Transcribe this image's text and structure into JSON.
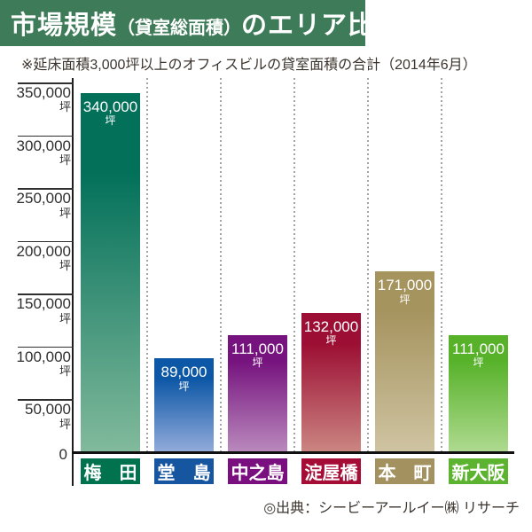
{
  "header": {
    "title_part1": "市場規模",
    "title_part2": "（貸室総面積）",
    "title_part3": "のエリア比較",
    "banner_color": "#3E7B58",
    "subtitle": "※延床面積3,000坪以上のオフィスビルの貸室面積の合計（2014年6月）"
  },
  "footer": {
    "source": "◎出典：シービーアールイー㈱ リサーチ"
  },
  "chart_data": {
    "type": "bar",
    "title": "市場規模（貸室総面積）のエリア比較",
    "subtitle": "※延床面積3,000坪以上のオフィスビルの貸室面積の合計（2014年6月）",
    "unit": "坪",
    "ylim": [
      0,
      350000
    ],
    "ytick_step": 50000,
    "yticks": [
      {
        "value": 350000,
        "label": "350,000"
      },
      {
        "value": 300000,
        "label": "300,000"
      },
      {
        "value": 250000,
        "label": "250,000"
      },
      {
        "value": 200000,
        "label": "200,000"
      },
      {
        "value": 150000,
        "label": "150,000"
      },
      {
        "value": 100000,
        "label": "100,000"
      },
      {
        "value": 50000,
        "label": "50,000"
      }
    ],
    "zero_label": "0",
    "grid": "vertical dotted separators between columns, horizontal tick stubs left of axis",
    "legend": "none",
    "categories": [
      "梅　田",
      "堂　島",
      "中之島",
      "淀屋橋",
      "本　町",
      "新大阪"
    ],
    "series": [
      {
        "category": "梅　田",
        "value": 340000,
        "value_label": "340,000",
        "bar_top_color": "#03705A",
        "bar_bottom_color": "#82BA9C",
        "box_color": "#00724E"
      },
      {
        "category": "堂　島",
        "value": 89000,
        "value_label": "89,000",
        "bar_top_color": "#0D58A6",
        "bar_bottom_color": "#93ABDB",
        "box_color": "#16559F"
      },
      {
        "category": "中之島",
        "value": 111000,
        "value_label": "111,000",
        "bar_top_color": "#76137E",
        "bar_bottom_color": "#BA8ABD",
        "box_color": "#7A0F80"
      },
      {
        "category": "淀屋橋",
        "value": 132000,
        "value_label": "132,000",
        "bar_top_color": "#9C0E33",
        "bar_bottom_color": "#CB8682",
        "box_color": "#A50D36"
      },
      {
        "category": "本　町",
        "value": 171000,
        "value_label": "171,000",
        "bar_top_color": "#A6945F",
        "bar_bottom_color": "#CFC4A2",
        "box_color": "#A39160"
      },
      {
        "category": "新大阪",
        "value": 111000,
        "value_label": "111,000",
        "bar_top_color": "#57B22A",
        "bar_bottom_color": "#AFDA90",
        "box_color": "#5CB32F"
      }
    ],
    "style": {
      "axis_color": "#1d1d1d",
      "tick_color": "#2f2f2f",
      "separator_color": "#a3a3a3",
      "label_text_color": "#2f2f2f",
      "bar_value_text_color": "#ffffff",
      "category_text_color": "#ffffff"
    }
  }
}
